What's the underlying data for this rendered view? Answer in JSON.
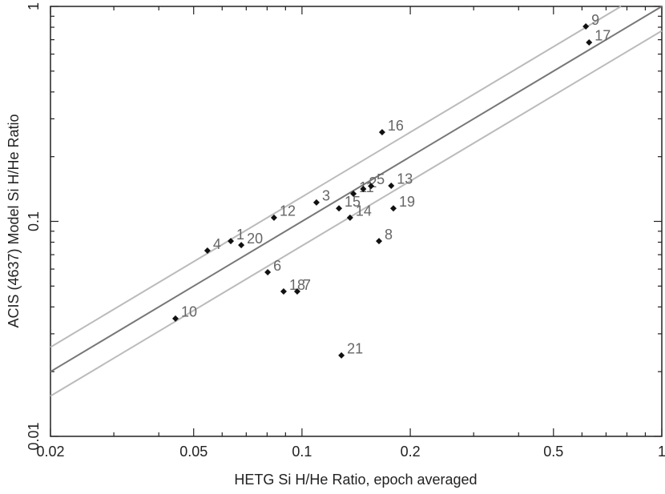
{
  "chart_data": {
    "type": "scatter",
    "x_label": "HETG Si H/He Ratio, epoch averaged",
    "y_label": "ACIS (4637) Model Si H/He Ratio",
    "log_x": true,
    "log_y": true,
    "xlim": [
      0.02,
      1
    ],
    "ylim": [
      0.01,
      1
    ],
    "xticks": [
      0.02,
      0.05,
      0.1,
      0.2,
      0.5,
      1
    ],
    "yticks": [
      0.01,
      0.1,
      1
    ],
    "xminor": [
      0.03,
      0.04,
      0.06,
      0.07,
      0.08,
      0.09,
      0.3,
      0.4,
      0.6,
      0.7,
      0.8,
      0.9
    ],
    "yminor": [
      0.02,
      0.03,
      0.04,
      0.05,
      0.06,
      0.07,
      0.08,
      0.09,
      0.2,
      0.3,
      0.4,
      0.5,
      0.6,
      0.7,
      0.8,
      0.9
    ],
    "series": [
      {
        "color": "#111111",
        "label_color": "#666666",
        "x": [
          0.615,
          0.628,
          0.167,
          0.177,
          0.139,
          0.148,
          0.1556,
          0.1795,
          0.1637,
          0.1267,
          0.136,
          0.1097,
          0.0836,
          0.0634,
          0.0678,
          0.0546,
          0.0803,
          0.0889,
          0.097,
          0.0445,
          0.1287
        ],
        "values": [
          0.807,
          0.68,
          0.26,
          0.1465,
          0.1344,
          0.1415,
          0.146,
          0.115,
          0.081,
          0.115,
          0.104,
          0.1224,
          0.104,
          0.081,
          0.0776,
          0.0731,
          0.058,
          0.0472,
          0.0472,
          0.0353,
          0.0238
        ],
        "labels": [
          "9",
          "17",
          "16",
          "13",
          "11",
          "2",
          "5",
          "19",
          "8",
          "15",
          "14",
          "3",
          "12",
          "1",
          "20",
          "4",
          "6",
          "18",
          "7",
          "10",
          "21"
        ]
      }
    ],
    "lines": [
      {
        "color": "#777777",
        "x": [
          0.02,
          1
        ],
        "values": [
          0.02,
          1
        ]
      },
      {
        "color": "#bbbbbb",
        "x": [
          0.02,
          0.77
        ],
        "values": [
          0.026,
          1
        ]
      },
      {
        "color": "#bbbbbb",
        "x": [
          0.02,
          1
        ],
        "values": [
          0.0154,
          0.77
        ]
      }
    ]
  }
}
